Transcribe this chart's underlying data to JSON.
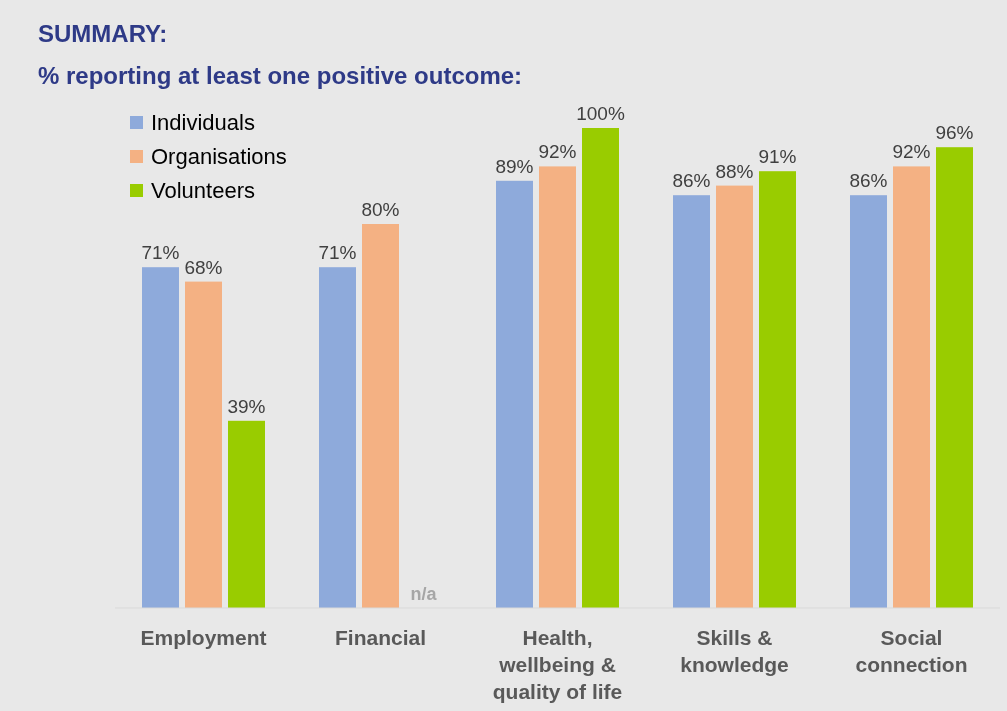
{
  "chart_data": {
    "type": "bar",
    "title": "SUMMARY:",
    "subtitle": "% reporting at least one positive outcome:",
    "categories": [
      "Employment",
      "Financial",
      "Health, wellbeing & quality of life",
      "Skills & knowledge",
      "Social connection"
    ],
    "series": [
      {
        "name": "Individuals",
        "color": "#8eaadb",
        "values": [
          71,
          71,
          89,
          86,
          86
        ],
        "value_labels": [
          "71%",
          "71%",
          "89%",
          "86%",
          "86%"
        ]
      },
      {
        "name": "Organisations",
        "color": "#f4b183",
        "values": [
          68,
          80,
          92,
          88,
          92
        ],
        "value_labels": [
          "68%",
          "80%",
          "92%",
          "88%",
          "92%"
        ]
      },
      {
        "name": "Volunteers",
        "color": "#99cc00",
        "values": [
          39,
          null,
          100,
          91,
          96
        ],
        "value_labels": [
          "39%",
          "n/a",
          "100%",
          "91%",
          "96%"
        ]
      }
    ],
    "ylim": [
      0,
      100
    ],
    "tick_labels": "x",
    "legend": "top left",
    "grid": false
  }
}
